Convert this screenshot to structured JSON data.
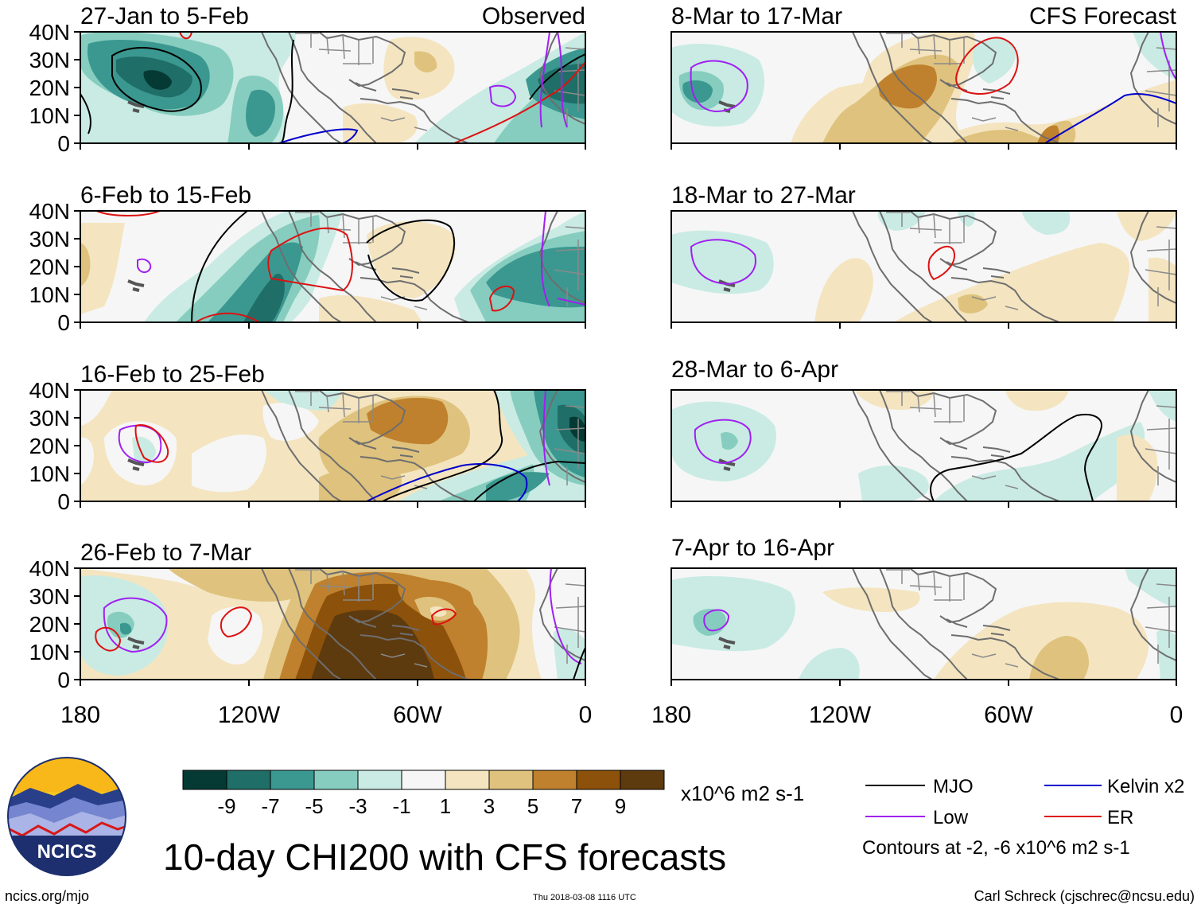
{
  "figure_title": "10-day CHI200 with CFS forecasts",
  "columns": {
    "left_label": "Observed",
    "right_label": "CFS Forecast"
  },
  "panels_left": [
    {
      "period": "27-Jan to 5-Feb"
    },
    {
      "period": "6-Feb to 15-Feb"
    },
    {
      "period": "16-Feb to 25-Feb"
    },
    {
      "period": "26-Feb to 7-Mar"
    }
  ],
  "panels_right": [
    {
      "period": "8-Mar to 17-Mar"
    },
    {
      "period": "18-Mar to 27-Mar"
    },
    {
      "period": "28-Mar to 6-Apr"
    },
    {
      "period": "7-Apr to 16-Apr"
    }
  ],
  "lat_ticks": [
    "40N",
    "30N",
    "20N",
    "10N",
    "0"
  ],
  "lon_ticks": [
    "180",
    "120W",
    "60W",
    "0"
  ],
  "colorbar": {
    "colors": [
      "#053a34",
      "#1f6e67",
      "#3b9890",
      "#86cdbf",
      "#c9ebe3",
      "#f6f6f6",
      "#f4e5c0",
      "#dfc27d",
      "#bf812d",
      "#8c510a",
      "#5e3a0f"
    ],
    "labels": [
      "-9",
      "-7",
      "-5",
      "-3",
      "-1",
      "1",
      "3",
      "5",
      "7",
      "9"
    ],
    "units": "x10^6 m2 s-1"
  },
  "legend": {
    "items": [
      {
        "label": "MJO",
        "color": "#000000"
      },
      {
        "label": "Kelvin x2",
        "color": "#0000cc"
      },
      {
        "label": "Low",
        "color": "#a020f0"
      },
      {
        "label": "ER",
        "color": "#dd1111"
      }
    ],
    "note": "Contours at -2, -6 x10^6 m2 s-1"
  },
  "logo": {
    "text": "NCICS"
  },
  "footer": {
    "url": "ncics.org/mjo",
    "timestamp": "Thu 2018-03-08 1116 UTC",
    "author": "Carl Schreck (cjschrec@ncsu.edu)"
  }
}
